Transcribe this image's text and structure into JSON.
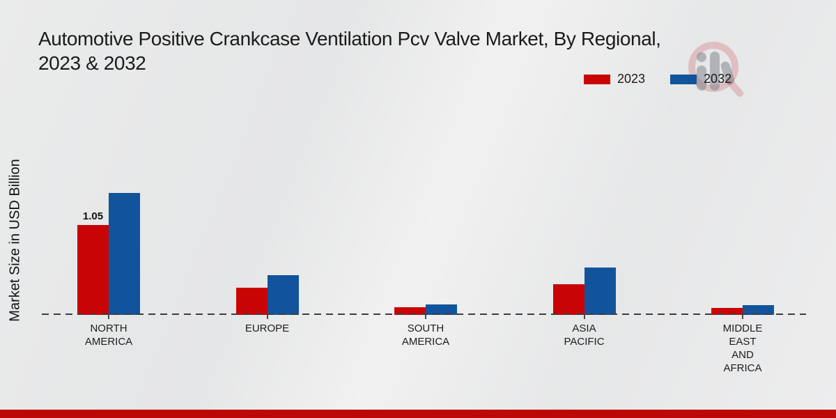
{
  "title": {
    "line1": "Automotive Positive Crankcase Ventilation Pcv Valve Market, By Regional,",
    "line2": "2023 & 2032"
  },
  "legend": {
    "items": [
      {
        "label": "2023",
        "color": "#c90404"
      },
      {
        "label": "2032",
        "color": "#11549b"
      }
    ]
  },
  "chart_data": {
    "type": "bar",
    "title": "Automotive Positive Crankcase Ventilation Pcv Valve Market, By Regional, 2023 & 2032",
    "ylabel": "Market Size in USD Billion",
    "xlabel": "",
    "categories": [
      "NORTH AMERICA",
      "EUROPE",
      "SOUTH AMERICA",
      "ASIA PACIFIC",
      "MIDDLE EAST AND AFRICA"
    ],
    "series": [
      {
        "name": "2023",
        "color": "#c90404",
        "values": [
          1.05,
          0.32,
          0.09,
          0.36,
          0.08
        ]
      },
      {
        "name": "2032",
        "color": "#11549b",
        "values": [
          1.42,
          0.46,
          0.12,
          0.55,
          0.11
        ]
      }
    ],
    "annotations": [
      {
        "series_index": 0,
        "category_index": 0,
        "text": "1.05"
      }
    ],
    "ylim": [
      0,
      1.5
    ],
    "grid": false,
    "axis_ticks_visible": false,
    "legend_position": "top-right",
    "baseline_style": "dashed"
  },
  "watermark": {
    "icon": "market-research-logo",
    "ring_color": "rgba(202,62,74,0.24)",
    "glyph_color": "rgba(122,127,136,0.5)"
  },
  "footer": {
    "color": "#bd0808"
  }
}
